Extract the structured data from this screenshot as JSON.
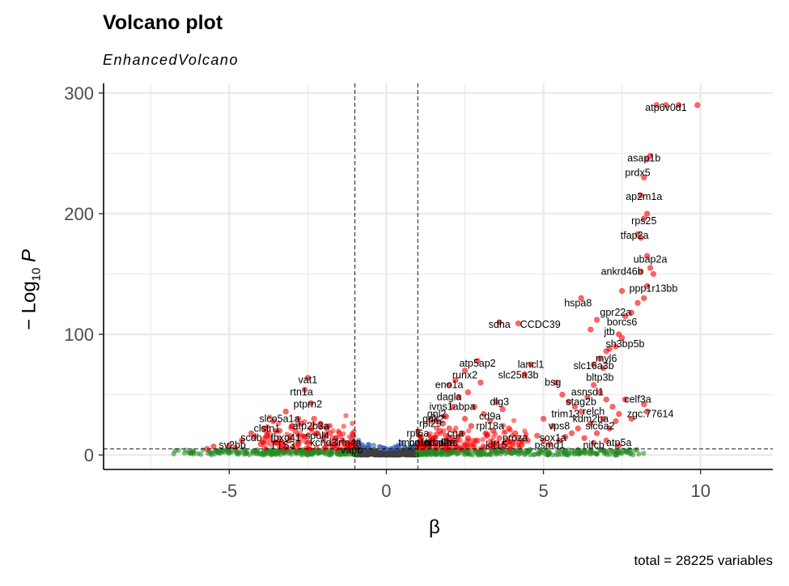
{
  "chart_data": {
    "type": "scatter",
    "title": "Volcano plot",
    "subtitle": "EnhancedVolcano",
    "caption": "total = 28225 variables",
    "xlabel": "β",
    "ylabel_main": "− Log",
    "ylabel_sub": "10",
    "ylabel_var": "P",
    "xlim": [
      -9,
      12.3
    ],
    "ylim": [
      -12,
      308
    ],
    "x_ticks": [
      -5,
      0,
      5,
      10
    ],
    "y_ticks": [
      0,
      100,
      200,
      300
    ],
    "x_tick_labels": [
      "-5",
      "0",
      "5",
      "10"
    ],
    "y_tick_labels": [
      "0",
      "100",
      "200",
      "300"
    ],
    "fc_cutoff": 1,
    "p_cutoff_log": 5,
    "grid": true,
    "colors": {
      "ns": "#404040",
      "log2fc": "#228B22",
      "p": "#2E5CB8",
      "p_and_log2fc": "#FF0000",
      "grid": "#ebebeb"
    },
    "significant_points": [
      [
        -2.5,
        64
      ],
      [
        -2.6,
        54
      ],
      [
        -2.4,
        43
      ],
      [
        -2.8,
        30
      ],
      [
        -3.2,
        36
      ],
      [
        -3.6,
        28
      ],
      [
        -3.4,
        20
      ],
      [
        -3.9,
        22
      ],
      [
        -4.3,
        18
      ],
      [
        -4.6,
        12
      ],
      [
        -4.2,
        15
      ],
      [
        -3.8,
        16
      ],
      [
        -3.0,
        24
      ],
      [
        -2.9,
        20
      ],
      [
        -2.7,
        26
      ],
      [
        -2.3,
        30
      ],
      [
        -2.1,
        26
      ],
      [
        -1.9,
        22
      ],
      [
        -1.8,
        18
      ],
      [
        -1.6,
        14
      ],
      [
        -1.4,
        12
      ],
      [
        -1.3,
        9
      ],
      [
        -1.2,
        8
      ],
      [
        -2.0,
        14
      ],
      [
        -2.2,
        18
      ],
      [
        -2.6,
        15
      ],
      [
        -3.1,
        12
      ],
      [
        -3.5,
        10
      ],
      [
        -4.0,
        9
      ],
      [
        -5.0,
        8
      ],
      [
        -5.5,
        7
      ],
      [
        -5.7,
        5
      ],
      [
        -4.8,
        6
      ],
      [
        -3.3,
        8
      ],
      [
        -2.5,
        10
      ],
      [
        -1.7,
        10
      ],
      [
        -1.5,
        18
      ],
      [
        -2.4,
        22
      ],
      [
        -3.7,
        14
      ],
      [
        -2.8,
        9
      ],
      [
        3.6,
        110
      ],
      [
        4.2,
        109
      ],
      [
        4.6,
        75
      ],
      [
        4.4,
        67
      ],
      [
        2.9,
        78
      ],
      [
        2.5,
        70
      ],
      [
        2.2,
        62
      ],
      [
        2.0,
        58
      ],
      [
        2.6,
        52
      ],
      [
        3.0,
        60
      ],
      [
        2.3,
        48
      ],
      [
        2.1,
        40
      ],
      [
        1.9,
        32
      ],
      [
        1.8,
        26
      ],
      [
        1.7,
        20
      ],
      [
        1.6,
        17
      ],
      [
        1.5,
        14
      ],
      [
        1.4,
        12
      ],
      [
        1.3,
        10
      ],
      [
        1.2,
        9
      ],
      [
        2.8,
        40
      ],
      [
        3.1,
        34
      ],
      [
        3.5,
        44
      ],
      [
        3.7,
        38
      ],
      [
        3.3,
        28
      ],
      [
        3.9,
        22
      ],
      [
        4.1,
        18
      ],
      [
        4.5,
        12
      ],
      [
        2.5,
        30
      ],
      [
        2.7,
        24
      ],
      [
        3.2,
        16
      ],
      [
        3.6,
        14
      ],
      [
        2.0,
        22
      ],
      [
        2.4,
        18
      ],
      [
        2.9,
        12
      ],
      [
        4.0,
        10
      ],
      [
        4.8,
        16
      ],
      [
        5.0,
        12
      ],
      [
        5.2,
        9
      ],
      [
        4.3,
        8
      ],
      [
        3.8,
        9
      ],
      [
        2.6,
        14
      ],
      [
        2.2,
        12
      ],
      [
        1.9,
        16
      ],
      [
        3.4,
        20
      ],
      [
        5.4,
        60
      ],
      [
        5.6,
        50
      ],
      [
        5.8,
        44
      ],
      [
        6.0,
        40
      ],
      [
        6.2,
        36
      ],
      [
        6.4,
        48
      ],
      [
        6.6,
        58
      ],
      [
        6.8,
        52
      ],
      [
        7.0,
        46
      ],
      [
        7.2,
        40
      ],
      [
        7.4,
        34
      ],
      [
        6.9,
        30
      ],
      [
        6.5,
        26
      ],
      [
        6.1,
        22
      ],
      [
        5.9,
        18
      ],
      [
        5.7,
        15
      ],
      [
        5.5,
        12
      ],
      [
        6.3,
        14
      ],
      [
        6.7,
        18
      ],
      [
        7.1,
        22
      ],
      [
        7.3,
        28
      ],
      [
        7.6,
        46
      ],
      [
        8.2,
        42
      ],
      [
        8.3,
        36
      ],
      [
        7.8,
        30
      ],
      [
        6.6,
        10
      ],
      [
        7.0,
        12
      ],
      [
        7.4,
        8
      ],
      [
        5.3,
        24
      ],
      [
        5.0,
        30
      ],
      [
        6.6,
        75
      ],
      [
        6.9,
        72
      ],
      [
        6.8,
        80
      ],
      [
        7.0,
        86
      ],
      [
        7.4,
        100
      ],
      [
        7.5,
        97
      ],
      [
        7.3,
        90
      ],
      [
        7.1,
        88
      ],
      [
        7.6,
        115
      ],
      [
        7.8,
        118
      ],
      [
        8.0,
        126
      ],
      [
        8.2,
        130
      ],
      [
        8.3,
        140
      ],
      [
        7.5,
        136
      ],
      [
        8.1,
        152
      ],
      [
        8.3,
        165
      ],
      [
        8.4,
        155
      ],
      [
        8.5,
        150
      ],
      [
        8.0,
        183
      ],
      [
        8.1,
        180
      ],
      [
        8.2,
        196
      ],
      [
        8.3,
        200
      ],
      [
        8.1,
        215
      ],
      [
        8.2,
        230
      ],
      [
        8.3,
        245
      ],
      [
        8.4,
        248
      ],
      [
        8.6,
        290
      ],
      [
        8.9,
        290
      ],
      [
        9.3,
        290
      ],
      [
        9.9,
        290
      ],
      [
        6.2,
        130
      ],
      [
        6.7,
        112
      ],
      [
        6.5,
        104
      ]
    ],
    "gene_labels": [
      {
        "name": "atp6v0d1",
        "x": 8.9,
        "y": 288
      },
      {
        "name": "asap1b",
        "x": 8.2,
        "y": 246
      },
      {
        "name": "prdx5",
        "x": 8.0,
        "y": 234
      },
      {
        "name": "ap2m1a",
        "x": 8.2,
        "y": 214
      },
      {
        "name": "rps25",
        "x": 8.2,
        "y": 194
      },
      {
        "name": "tfap2a",
        "x": 7.9,
        "y": 182
      },
      {
        "name": "ubap2a",
        "x": 8.4,
        "y": 162
      },
      {
        "name": "ankrd46b",
        "x": 7.5,
        "y": 152
      },
      {
        "name": "ppp1r13bb",
        "x": 8.5,
        "y": 138
      },
      {
        "name": "hspa8",
        "x": 6.1,
        "y": 126
      },
      {
        "name": "gpr22a",
        "x": 7.3,
        "y": 118
      },
      {
        "name": "borcs6",
        "x": 7.5,
        "y": 110
      },
      {
        "name": "sdha",
        "x": 3.6,
        "y": 108
      },
      {
        "name": "CCDC39",
        "x": 4.9,
        "y": 108
      },
      {
        "name": "jtb",
        "x": 7.1,
        "y": 102
      },
      {
        "name": "sh3bp5b",
        "x": 7.6,
        "y": 92
      },
      {
        "name": "myl6",
        "x": 7.0,
        "y": 80
      },
      {
        "name": "atp5ap2",
        "x": 2.9,
        "y": 76
      },
      {
        "name": "lancl1",
        "x": 4.6,
        "y": 75
      },
      {
        "name": "slc16a3b",
        "x": 6.6,
        "y": 74
      },
      {
        "name": "runx2",
        "x": 2.5,
        "y": 66
      },
      {
        "name": "slc25a3b",
        "x": 4.2,
        "y": 66
      },
      {
        "name": "bltp3b",
        "x": 6.8,
        "y": 64
      },
      {
        "name": "vat1",
        "x": -2.5,
        "y": 62
      },
      {
        "name": "bsg",
        "x": 5.3,
        "y": 60
      },
      {
        "name": "eno1a",
        "x": 2.0,
        "y": 58
      },
      {
        "name": "rtn1a",
        "x": -2.7,
        "y": 52
      },
      {
        "name": "asnsd1",
        "x": 6.4,
        "y": 52
      },
      {
        "name": "dagla",
        "x": 2.0,
        "y": 48
      },
      {
        "name": "dlg3",
        "x": 3.6,
        "y": 44
      },
      {
        "name": "celf3a",
        "x": 8.0,
        "y": 46
      },
      {
        "name": "stag2b",
        "x": 6.2,
        "y": 44
      },
      {
        "name": "ptprn2",
        "x": -2.5,
        "y": 42
      },
      {
        "name": "ivns1abpa",
        "x": 2.1,
        "y": 40
      },
      {
        "name": "relch",
        "x": 6.6,
        "y": 36
      },
      {
        "name": "trim13",
        "x": 5.7,
        "y": 34
      },
      {
        "name": "zgc:77614",
        "x": 8.4,
        "y": 34
      },
      {
        "name": "gnl2",
        "x": 1.6,
        "y": 34
      },
      {
        "name": "cd9a",
        "x": 3.3,
        "y": 32
      },
      {
        "name": "kdm2ba",
        "x": 6.5,
        "y": 30
      },
      {
        "name": "slco5a1a",
        "x": -3.4,
        "y": 30
      },
      {
        "name": "grik2",
        "x": 1.5,
        "y": 30
      },
      {
        "name": "rpl29",
        "x": 1.4,
        "y": 26
      },
      {
        "name": "rpl18a",
        "x": 3.3,
        "y": 24
      },
      {
        "name": "vps8",
        "x": 5.5,
        "y": 24
      },
      {
        "name": "slc6a2",
        "x": 6.8,
        "y": 24
      },
      {
        "name": "clstn1",
        "x": -3.8,
        "y": 22
      },
      {
        "name": "atp2b3a",
        "x": -2.4,
        "y": 24
      },
      {
        "name": "soul4",
        "x": -2.2,
        "y": 16
      },
      {
        "name": "rpl6a",
        "x": 1.0,
        "y": 18
      },
      {
        "name": "cga",
        "x": 2.2,
        "y": 18
      },
      {
        "name": "sox1a",
        "x": 5.3,
        "y": 14
      },
      {
        "name": "proza",
        "x": 4.1,
        "y": 14
      },
      {
        "name": "scdb",
        "x": -4.3,
        "y": 14
      },
      {
        "name": "fbxo41",
        "x": -3.2,
        "y": 14
      },
      {
        "name": "tmcc1b",
        "x": 0.9,
        "y": 10
      },
      {
        "name": "fbrs",
        "x": 2.0,
        "y": 10
      },
      {
        "name": "ptbp2a",
        "x": 1.7,
        "y": 10
      },
      {
        "name": "hnrnpa0b",
        "x": 1.4,
        "y": 10
      },
      {
        "name": "klf15",
        "x": 3.5,
        "y": 8
      },
      {
        "name": "psmd1",
        "x": 5.2,
        "y": 8
      },
      {
        "name": "nifcb",
        "x": 6.6,
        "y": 8
      },
      {
        "name": "atp5a",
        "x": 7.4,
        "y": 10
      },
      {
        "name": "kcnd3",
        "x": -2.0,
        "y": 10
      },
      {
        "name": "lrfn4a",
        "x": -1.2,
        "y": 10
      },
      {
        "name": "TTS3",
        "x": -3.3,
        "y": 8
      },
      {
        "name": "sv2bb",
        "x": -4.9,
        "y": 8
      },
      {
        "name": "vapb",
        "x": -1.1,
        "y": 4
      }
    ]
  }
}
